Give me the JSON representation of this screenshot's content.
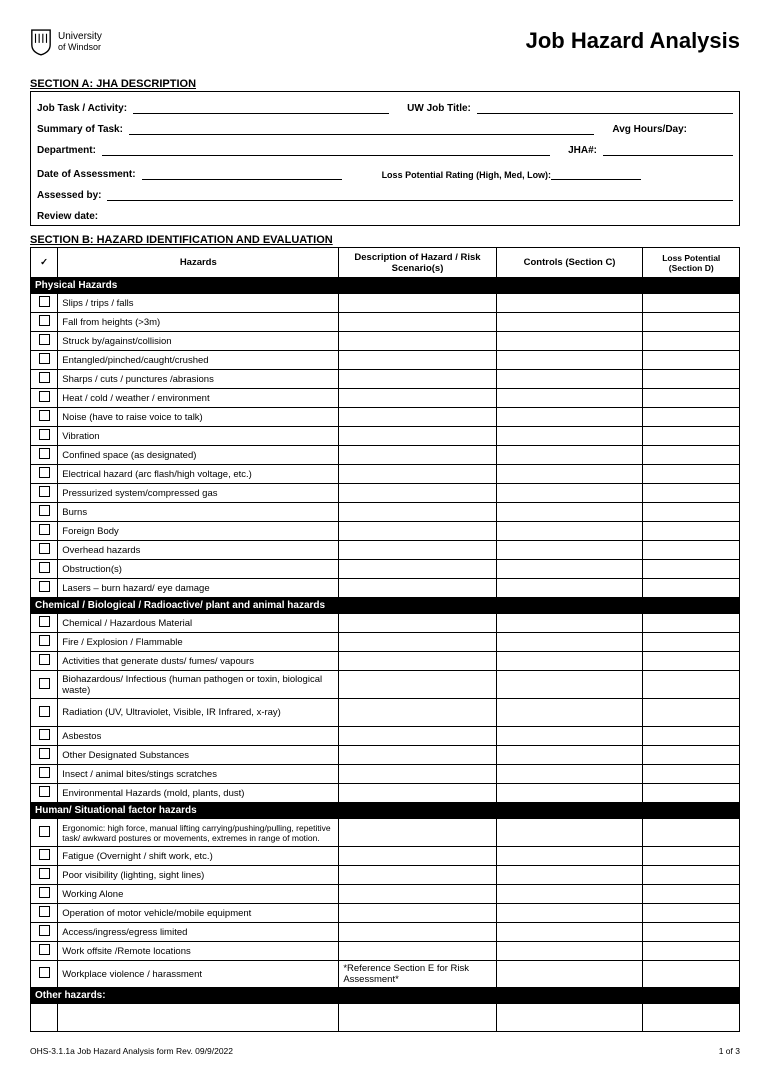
{
  "header": {
    "uni_line1": "University",
    "uni_line2": "of Windsor",
    "title": "Job Hazard Analysis"
  },
  "sectionA": {
    "heading": "SECTION A:  JHA DESCRIPTION",
    "job_task": "Job Task / Activity:",
    "uw_title": "UW Job Title:",
    "summary": "Summary of Task:",
    "avg_hours": "Avg Hours/Day:",
    "dept": "Department:",
    "jha_no": "JHA#:",
    "date_assess": "Date of Assessment:",
    "loss_rating": "Loss Potential Rating (High, Med, Low):",
    "assessed_by": "Assessed by:",
    "review_date": "Review date:"
  },
  "sectionB": {
    "heading": "SECTION B:  HAZARD IDENTIFICATION AND EVALUATION",
    "cols": {
      "check": "✓",
      "hazards": "Hazards",
      "desc": "Description of Hazard / Risk Scenario(s)",
      "controls": "Controls (Section C)",
      "loss": "Loss Potential (Section D)"
    },
    "cat_physical": "Physical Hazards",
    "physical": [
      "Slips / trips / falls",
      "Fall from heights (>3m)",
      "Struck by/against/collision",
      "Entangled/pinched/caught/crushed",
      "Sharps / cuts / punctures /abrasions",
      "Heat / cold / weather / environment",
      "Noise (have to raise voice to talk)",
      "Vibration",
      "Confined space (as designated)",
      "Electrical hazard (arc flash/high voltage, etc.)",
      "Pressurized system/compressed gas",
      "Burns",
      "Foreign Body",
      "Overhead hazards",
      "Obstruction(s)",
      "Lasers – burn hazard/ eye damage"
    ],
    "cat_chem": "Chemical / Biological / Radioactive/ plant and animal hazards",
    "chem": [
      "Chemical / Hazardous Material",
      "Fire / Explosion / Flammable",
      "Activities that generate dusts/ fumes/ vapours",
      "Biohazardous/ Infectious (human pathogen or toxin, biological waste)",
      "Radiation (UV, Ultraviolet, Visible, IR Infrared, x-ray)",
      "Asbestos",
      "Other Designated Substances",
      "Insect / animal bites/stings scratches",
      "Environmental Hazards (mold, plants, dust)"
    ],
    "cat_human": "Human/ Situational factor hazards",
    "human": [
      "Ergonomic: high force, manual lifting carrying/pushing/pulling, repetitive task/ awkward postures or movements, extremes in range of motion.",
      "Fatigue (Overnight / shift work, etc.)",
      "Poor visibility (lighting, sight lines)",
      "Working Alone",
      "Operation of motor vehicle/mobile equipment",
      "Access/ingress/egress limited",
      "Work offsite /Remote locations",
      "Workplace violence / harassment"
    ],
    "violence_ref": "*Reference Section E for Risk Assessment*",
    "cat_other": "Other hazards:"
  },
  "footer": {
    "left": "OHS-3.1.1a Job Hazard Analysis form Rev. 09/9/2022",
    "right": "1 of 3"
  }
}
